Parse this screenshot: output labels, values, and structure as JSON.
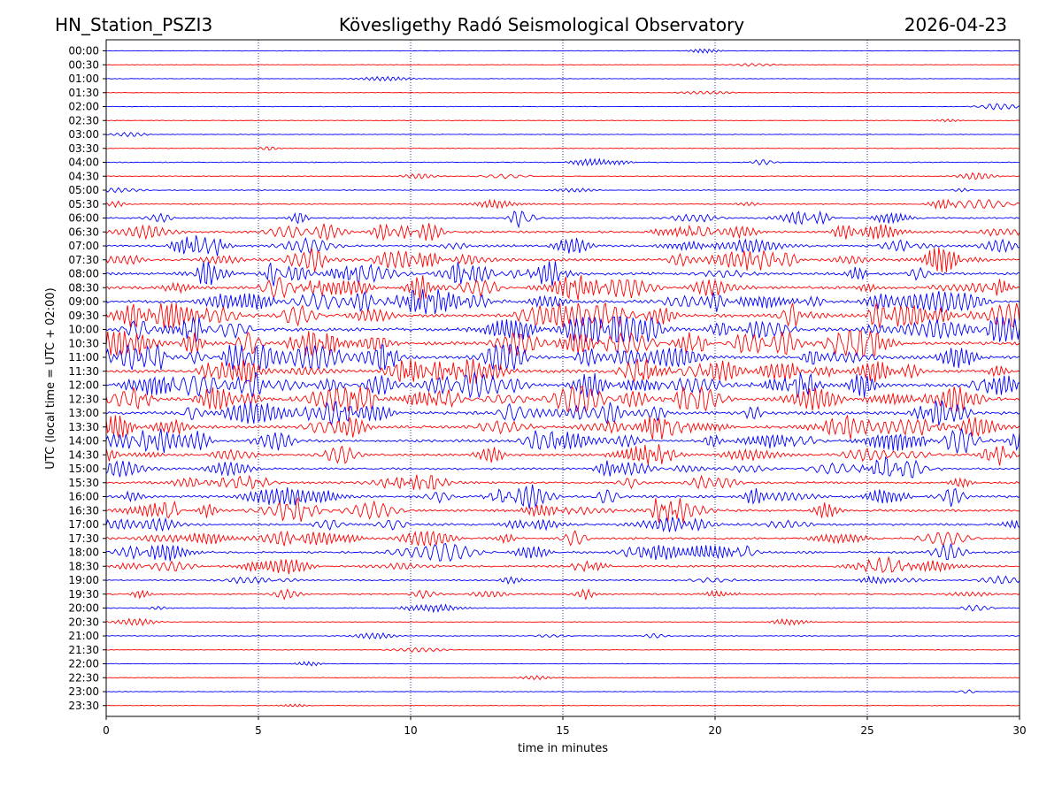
{
  "header": {
    "station": "HN_Station_PSZI3",
    "observatory": "Kövesligethy Radó Seismological Observatory",
    "date": "2026-04-23"
  },
  "chart_data": {
    "type": "line",
    "title": "Kövesligethy Radó Seismological Observatory",
    "xlabel": "time in minutes",
    "ylabel": "UTC (local time = UTC + 02:00)",
    "xlim": [
      0,
      30
    ],
    "x_ticks": [
      0,
      5,
      10,
      15,
      20,
      25,
      30
    ],
    "x_tick_labels": [
      "0",
      "5",
      "10",
      "15",
      "20",
      "25",
      "30"
    ],
    "grid": {
      "vertical_dotted_at_minutes": [
        5,
        10,
        15,
        20,
        25
      ]
    },
    "trace_colors": [
      "#0000ff",
      "#ff0000"
    ],
    "traces": [
      {
        "label": "00:00",
        "color": "#0000ff",
        "activity": 0.02
      },
      {
        "label": "00:30",
        "color": "#ff0000",
        "activity": 0.02
      },
      {
        "label": "01:00",
        "color": "#0000ff",
        "activity": 0.02
      },
      {
        "label": "01:30",
        "color": "#ff0000",
        "activity": 0.02
      },
      {
        "label": "02:00",
        "color": "#0000ff",
        "activity": 0.03
      },
      {
        "label": "02:30",
        "color": "#ff0000",
        "activity": 0.03
      },
      {
        "label": "03:00",
        "color": "#0000ff",
        "activity": 0.05
      },
      {
        "label": "03:30",
        "color": "#ff0000",
        "activity": 0.05
      },
      {
        "label": "04:00",
        "color": "#0000ff",
        "activity": 0.12
      },
      {
        "label": "04:30",
        "color": "#ff0000",
        "activity": 0.1
      },
      {
        "label": "05:00",
        "color": "#0000ff",
        "activity": 0.12
      },
      {
        "label": "05:30",
        "color": "#ff0000",
        "activity": 0.18
      },
      {
        "label": "06:00",
        "color": "#0000ff",
        "activity": 0.3
      },
      {
        "label": "06:30",
        "color": "#ff0000",
        "activity": 0.45
      },
      {
        "label": "07:00",
        "color": "#0000ff",
        "activity": 0.5
      },
      {
        "label": "07:30",
        "color": "#ff0000",
        "activity": 0.6
      },
      {
        "label": "08:00",
        "color": "#0000ff",
        "activity": 0.6
      },
      {
        "label": "08:30",
        "color": "#ff0000",
        "activity": 0.65
      },
      {
        "label": "09:00",
        "color": "#0000ff",
        "activity": 0.75
      },
      {
        "label": "09:30",
        "color": "#ff0000",
        "activity": 0.75
      },
      {
        "label": "10:00",
        "color": "#0000ff",
        "activity": 0.85
      },
      {
        "label": "10:30",
        "color": "#ff0000",
        "activity": 0.8
      },
      {
        "label": "11:00",
        "color": "#0000ff",
        "activity": 0.75
      },
      {
        "label": "11:30",
        "color": "#ff0000",
        "activity": 0.75
      },
      {
        "label": "12:00",
        "color": "#0000ff",
        "activity": 0.8
      },
      {
        "label": "12:30",
        "color": "#ff0000",
        "activity": 0.8
      },
      {
        "label": "13:00",
        "color": "#0000ff",
        "activity": 0.7
      },
      {
        "label": "13:30",
        "color": "#ff0000",
        "activity": 0.65
      },
      {
        "label": "14:00",
        "color": "#0000ff",
        "activity": 0.6
      },
      {
        "label": "14:30",
        "color": "#ff0000",
        "activity": 0.5
      },
      {
        "label": "15:00",
        "color": "#0000ff",
        "activity": 0.4
      },
      {
        "label": "15:30",
        "color": "#ff0000",
        "activity": 0.45
      },
      {
        "label": "16:00",
        "color": "#0000ff",
        "activity": 0.55
      },
      {
        "label": "16:30",
        "color": "#ff0000",
        "activity": 0.5
      },
      {
        "label": "17:00",
        "color": "#0000ff",
        "activity": 0.45
      },
      {
        "label": "17:30",
        "color": "#ff0000",
        "activity": 0.4
      },
      {
        "label": "18:00",
        "color": "#0000ff",
        "activity": 0.45
      },
      {
        "label": "18:30",
        "color": "#ff0000",
        "activity": 0.4
      },
      {
        "label": "19:00",
        "color": "#0000ff",
        "activity": 0.25
      },
      {
        "label": "19:30",
        "color": "#ff0000",
        "activity": 0.25
      },
      {
        "label": "20:00",
        "color": "#0000ff",
        "activity": 0.12
      },
      {
        "label": "20:30",
        "color": "#ff0000",
        "activity": 0.06
      },
      {
        "label": "21:00",
        "color": "#0000ff",
        "activity": 0.1
      },
      {
        "label": "21:30",
        "color": "#ff0000",
        "activity": 0.05
      },
      {
        "label": "22:00",
        "color": "#0000ff",
        "activity": 0.03
      },
      {
        "label": "22:30",
        "color": "#ff0000",
        "activity": 0.03
      },
      {
        "label": "23:00",
        "color": "#0000ff",
        "activity": 0.04
      },
      {
        "label": "23:30",
        "color": "#ff0000",
        "activity": 0.03
      }
    ]
  }
}
